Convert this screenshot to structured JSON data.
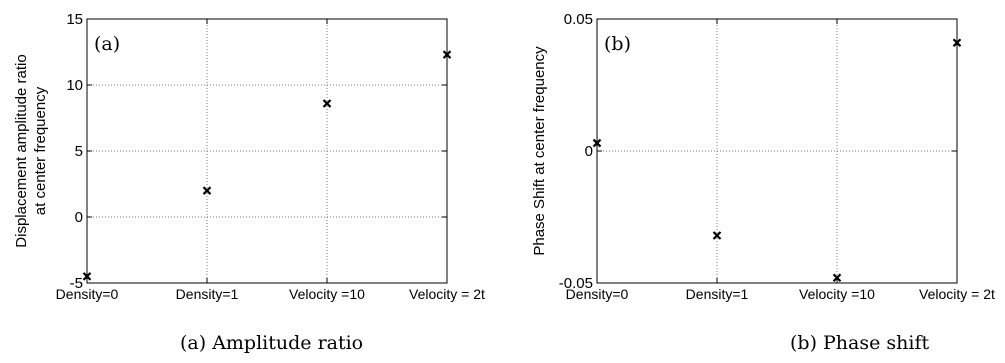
{
  "chart_data": [
    {
      "type": "scatter",
      "panel_label": "(a)",
      "caption": "(a) Amplitude ratio",
      "ylabel_lines": [
        "Displacement amplitude ratio",
        "at center frequency"
      ],
      "categories": [
        "Density=0",
        "Density=1",
        "Velocity =10",
        "Velocity = 2t"
      ],
      "values": [
        -4.5,
        2.0,
        8.6,
        12.3
      ],
      "ylim": [
        -5,
        15
      ],
      "yticks": [
        -5,
        0,
        5,
        10,
        15
      ],
      "ytick_labels": [
        "-5",
        "0",
        "5",
        "10",
        "15"
      ],
      "grid": true,
      "marker": "x"
    },
    {
      "type": "scatter",
      "panel_label": "(b)",
      "caption": "(b) Phase shift",
      "ylabel_lines": [
        "Phase Shift at center frequency"
      ],
      "categories": [
        "Density=0",
        "Density=1",
        "Velocity =10",
        "Velocity = 2t"
      ],
      "values": [
        0.003,
        -0.032,
        -0.048,
        0.041
      ],
      "ylim": [
        -0.05,
        0.05
      ],
      "yticks": [
        -0.05,
        0,
        0.05
      ],
      "ytick_labels": [
        "-0.05",
        "0",
        "0.05"
      ],
      "grid": true,
      "marker": "x"
    }
  ]
}
